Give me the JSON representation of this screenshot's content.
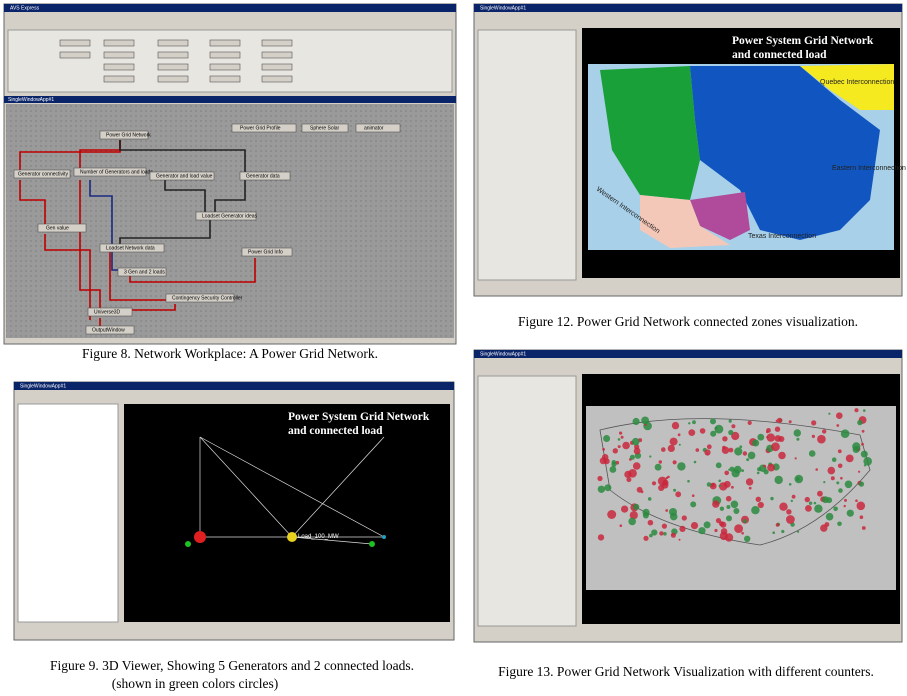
{
  "figures": [
    {
      "caption": "Figure 8. Network Workplace: A Power Grid Network.",
      "window_title": "AVS Express",
      "canvas_title": "SingleWindowApp#1",
      "nodes": [
        "Power Grid Network",
        "Power Grid Profile",
        "Sphere Solar",
        "animator",
        "Generator connectivity",
        "Number of Generators and loads",
        "Generator and load value",
        "Generator data",
        "Loadset Generator ideas",
        "Gen value",
        "Loadset Network data",
        "Power Grid Info",
        "3 Gen and 2 loads",
        "Contingency Security Controller",
        "Universe3D",
        "OutputWindow"
      ]
    },
    {
      "caption": "Figure 12. Power Grid Network connected zones visualization.",
      "window_title": "SingleWindowApp#1",
      "title_lines": [
        "Power System Grid Network",
        "and  connected load"
      ],
      "regions": [
        "Quebec Interconnection",
        "Eastern Interconnection",
        "Western Interconnection",
        "Texas Interconnection"
      ]
    },
    {
      "caption": "Figure 9. 3D Viewer, Showing 5 Generators and 2 connected loads.",
      "caption_note": "(shown in green colors circles)",
      "window_title": "SingleWindowApp#1",
      "title_lines": [
        "Power System Grid Network",
        "and  connected load"
      ],
      "load_label": "Load_100_MW"
    },
    {
      "caption": "Figure 13. Power Grid Network Visualization with different counters.",
      "window_title": "SingleWindowApp#1"
    }
  ]
}
